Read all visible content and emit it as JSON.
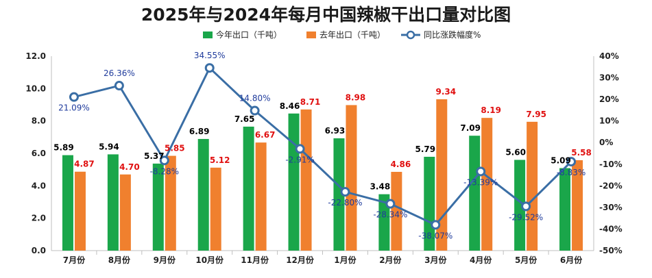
{
  "chart_data": {
    "type": "bar",
    "title": "2025年与2024年每月中国辣椒干出口量对比图",
    "categories": [
      "7月份",
      "8月份",
      "9月份",
      "10月份",
      "11月份",
      "12月份",
      "1月份",
      "2月份",
      "3月份",
      "4月份",
      "5月份",
      "6月份"
    ],
    "series": [
      {
        "name": "今年出口（千吨）",
        "type": "bar",
        "color": "#1aa64a",
        "axis": "left",
        "values": [
          5.89,
          5.94,
          5.37,
          6.89,
          7.65,
          8.46,
          6.93,
          3.48,
          5.79,
          7.09,
          5.6,
          5.09
        ]
      },
      {
        "name": "去年出口（千吨）",
        "type": "bar",
        "color": "#f0802e",
        "axis": "left",
        "values": [
          4.87,
          4.7,
          5.85,
          5.12,
          6.67,
          8.71,
          8.98,
          4.86,
          9.34,
          8.19,
          7.95,
          5.58
        ]
      },
      {
        "name": "同比涨跌幅度%",
        "type": "line",
        "color": "#3a6ea5",
        "axis": "right",
        "values": [
          21.09,
          26.36,
          -8.28,
          34.55,
          14.8,
          -2.91,
          -22.8,
          -28.34,
          -38.07,
          -13.39,
          -29.52,
          -8.83
        ]
      }
    ],
    "y_left": {
      "min": 0,
      "max": 12,
      "step": 2,
      "tick_labels": [
        "0.0",
        "2.0",
        "4.0",
        "6.0",
        "8.0",
        "10.0",
        "12.0"
      ]
    },
    "y_right": {
      "min": -50,
      "max": 40,
      "step": 10,
      "tick_labels": [
        "-50%",
        "-40%",
        "-30%",
        "-20%",
        "-10%",
        "0%",
        "10%",
        "20%",
        "30%",
        "40%"
      ]
    },
    "bar_labels_cur": [
      "5.89",
      "5.94",
      "5.37",
      "6.89",
      "7.65",
      "8.46",
      "6.93",
      "3.48",
      "5.79",
      "7.09",
      "5.60",
      "5.09"
    ],
    "bar_labels_prev": [
      "4.87",
      "4.70",
      "5.85",
      "5.12",
      "6.67",
      "8.71",
      "8.98",
      "4.86",
      "9.34",
      "8.19",
      "7.95",
      "5.58"
    ],
    "line_labels": [
      "21.09%",
      "26.36%",
      "-8.28%",
      "34.55%",
      "14.80%",
      "-2.91%",
      "-22.80%",
      "-28.34%",
      "-38.07%",
      "-13.39%",
      "-29.52%",
      "-8.83%"
    ],
    "line_label_pos": [
      "below",
      "above",
      "below",
      "above",
      "above",
      "below",
      "below",
      "below",
      "below",
      "below",
      "below",
      "below"
    ],
    "legend_position": "top",
    "grid": false
  }
}
